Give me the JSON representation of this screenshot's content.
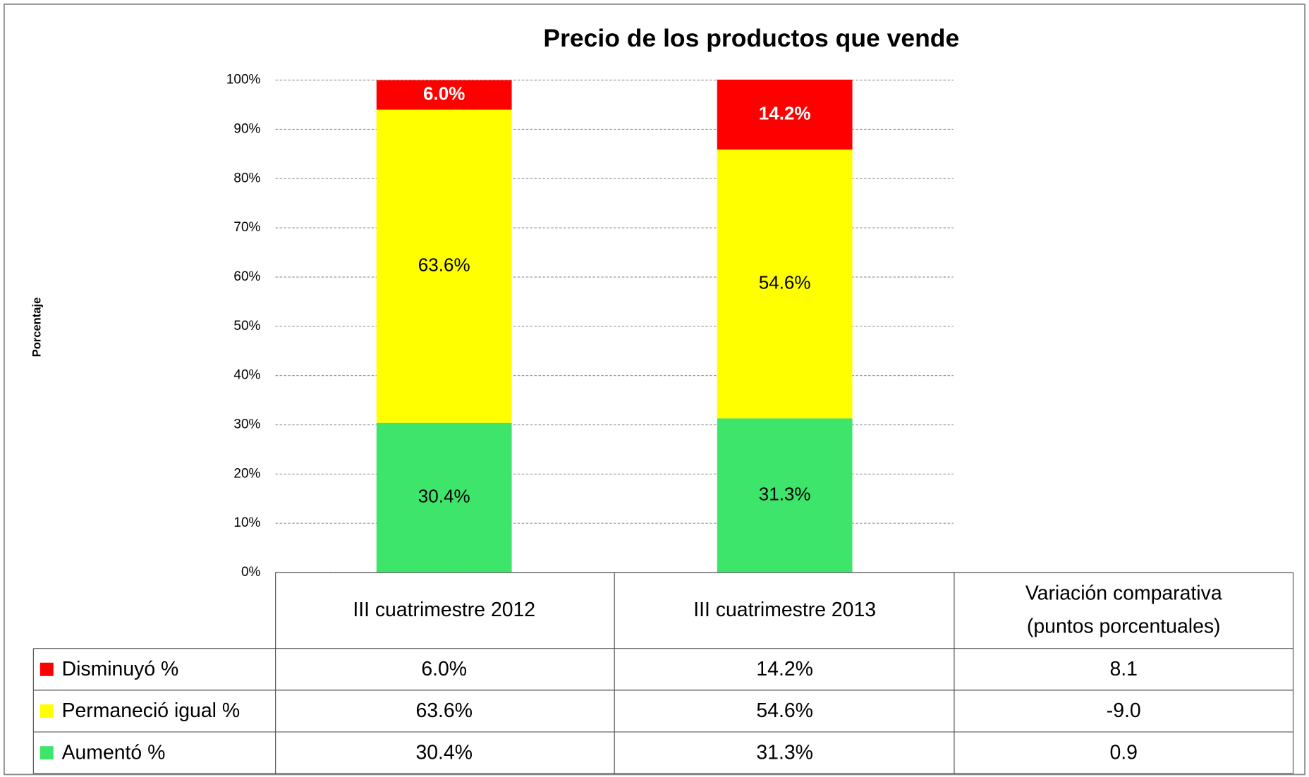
{
  "chart_data": {
    "type": "stacked_bar",
    "title": "Precio de los productos que vende",
    "y_label": "Porcentaje",
    "categories": [
      "III cuatrimestre 2012",
      "III cuatrimestre 2013"
    ],
    "series": [
      {
        "name": "Disminuyó %",
        "color": "#ff0000",
        "values": [
          6.0,
          14.2
        ],
        "value_labels": [
          "6.0%",
          "14.2%"
        ]
      },
      {
        "name": "Permaneció igual %",
        "color": "#ffff00",
        "values": [
          63.6,
          54.6
        ],
        "value_labels": [
          "63.6%",
          "54.6%"
        ]
      },
      {
        "name": "Aumentó %",
        "color": "#3de66b",
        "values": [
          30.4,
          31.3
        ],
        "value_labels": [
          "30.4%",
          "31.3%"
        ]
      }
    ],
    "variation": {
      "header": [
        "Variación comparativa",
        "(puntos porcentuales)"
      ],
      "values": [
        8.1,
        -9.0,
        0.9
      ],
      "value_labels": [
        "8.1",
        "-9.0",
        "0.9"
      ]
    },
    "ylim": [
      0,
      100
    ],
    "yticks": [
      {
        "value": 0,
        "label": "0%"
      },
      {
        "value": 10,
        "label": "10%"
      },
      {
        "value": 20,
        "label": "20%"
      },
      {
        "value": 30,
        "label": "30%"
      },
      {
        "value": 40,
        "label": "40%"
      },
      {
        "value": 50,
        "label": "50%"
      },
      {
        "value": 60,
        "label": "60%"
      },
      {
        "value": 70,
        "label": "70%"
      },
      {
        "value": 80,
        "label": "80%"
      },
      {
        "value": 90,
        "label": "90%"
      },
      {
        "value": 100,
        "label": "100%"
      }
    ],
    "grid": true
  }
}
